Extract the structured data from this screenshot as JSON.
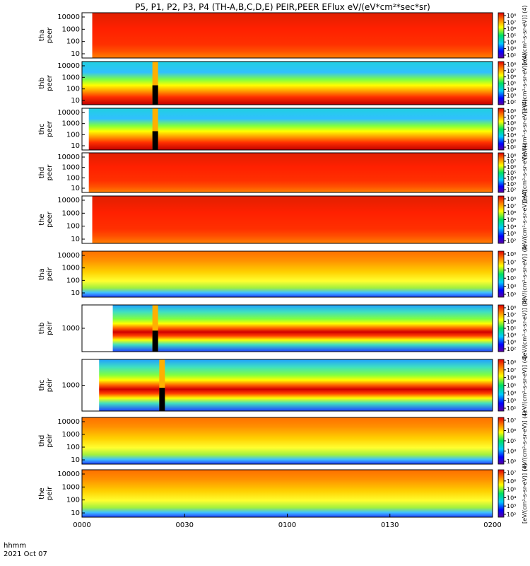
{
  "title": "P5, P1, P2, P3, P4 (TH-A,B,C,D,E) PEIR,PEER EFlux eV/(eV*cm²*sec*sr)",
  "footer": {
    "time_label": "hhmm",
    "date_label": "2021 Oct 07"
  },
  "colorbar_unit_label": "[eV/(cm²-s-sr-eV)] (4)",
  "chart_data": {
    "type": "heatmap",
    "x_ticks": [
      "0000",
      "0030",
      "0100",
      "0130",
      "0200"
    ],
    "panels": [
      {
        "id": "tha_peer",
        "label": [
          "tha",
          "peer"
        ],
        "y_ticks": [
          "10000",
          "1000",
          "100",
          "10"
        ],
        "cbar_ticks": [
          "10⁸",
          "10⁷",
          "10⁶",
          "10⁵",
          "10⁴",
          "10³",
          "10²"
        ],
        "data_start": "0003",
        "style": "full"
      },
      {
        "id": "thb_peer",
        "label": [
          "thb",
          "peer"
        ],
        "y_ticks": [
          "10000",
          "1000",
          "100",
          "10"
        ],
        "cbar_ticks": [
          "10⁸",
          "10⁷",
          "10⁶",
          "10⁵",
          "10⁴",
          "10³",
          "10²"
        ],
        "data_start": "0000",
        "style": "low_noisy",
        "spike_at": "0021"
      },
      {
        "id": "thc_peer",
        "label": [
          "thc",
          "peer"
        ],
        "y_ticks": [
          "10000",
          "1000",
          "100",
          "10"
        ],
        "cbar_ticks": [
          "10⁸",
          "10⁷",
          "10⁶",
          "10⁵",
          "10⁴",
          "10³",
          "10²"
        ],
        "data_start": "0002",
        "style": "low_noisy",
        "spike_at": "0021"
      },
      {
        "id": "thd_peer",
        "label": [
          "thd",
          "peer"
        ],
        "y_ticks": [
          "10000",
          "1000",
          "100",
          "10"
        ],
        "cbar_ticks": [
          "10⁸",
          "10⁷",
          "10⁶",
          "10⁵",
          "10⁴",
          "10³",
          "10²"
        ],
        "data_start": "0002",
        "style": "full"
      },
      {
        "id": "the_peer",
        "label": [
          "the",
          "peer"
        ],
        "y_ticks": [
          "10000",
          "1000",
          "100",
          "10"
        ],
        "cbar_ticks": [
          "10⁸",
          "10⁷",
          "10⁶",
          "10⁵",
          "10⁴",
          "10³",
          "10²"
        ],
        "data_start": "0003",
        "style": "full"
      },
      {
        "id": "tha_peir",
        "label": [
          "tha",
          "peir"
        ],
        "y_ticks": [
          "10000",
          "1000",
          "100",
          "10"
        ],
        "cbar_ticks": [
          "10⁸",
          "10⁷",
          "10⁶",
          "10⁵",
          "10⁴",
          "10³"
        ],
        "data_start": "0000",
        "style": "ion"
      },
      {
        "id": "thb_peir",
        "label": [
          "thb",
          "peir"
        ],
        "y_ticks": [
          "1000"
        ],
        "cbar_ticks": [
          "10⁸",
          "10⁷",
          "10⁶",
          "10⁵",
          "10⁴",
          "10³",
          "10²"
        ],
        "data_start": "0009",
        "style": "bands",
        "spike_at": "0021"
      },
      {
        "id": "thc_peir",
        "label": [
          "thc",
          "peir"
        ],
        "y_ticks": [
          "1000"
        ],
        "cbar_ticks": [
          "10⁸",
          "10⁷",
          "10⁶",
          "10⁵",
          "10⁴",
          "10³",
          "10²"
        ],
        "data_start": "0005",
        "style": "bands",
        "spike_at": "0023"
      },
      {
        "id": "thd_peir",
        "label": [
          "thd",
          "peir"
        ],
        "y_ticks": [
          "10000",
          "1000",
          "100",
          "10"
        ],
        "cbar_ticks": [
          "10⁷",
          "10⁶",
          "10⁵",
          "10⁴",
          "10³"
        ],
        "data_start": "0000",
        "style": "ion"
      },
      {
        "id": "the_peir",
        "label": [
          "the",
          "peir"
        ],
        "y_ticks": [
          "10000",
          "1000",
          "100",
          "10"
        ],
        "cbar_ticks": [
          "10⁷",
          "10⁶",
          "10⁵",
          "10⁴",
          "10³",
          "10²"
        ],
        "data_start": "0000",
        "style": "ion"
      }
    ]
  }
}
